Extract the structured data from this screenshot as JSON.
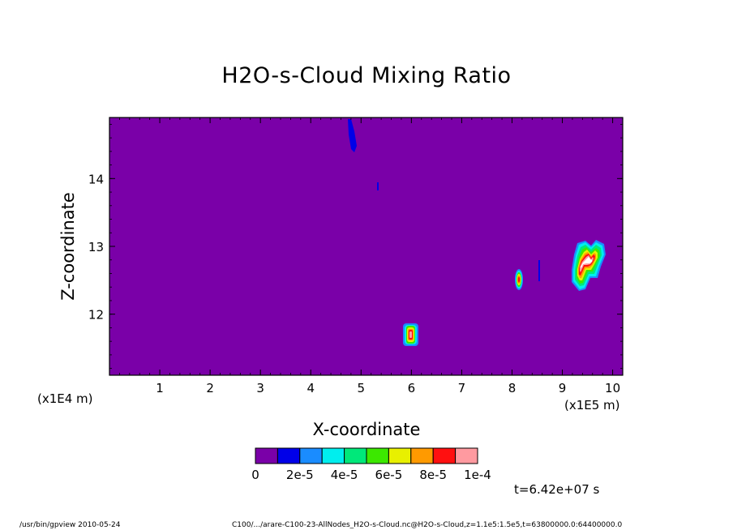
{
  "chart_data": {
    "type": "heatmap",
    "title": "H2O-s-Cloud Mixing Ratio",
    "xlabel": "X-coordinate",
    "ylabel": "Z-coordinate",
    "x_scale_label": "(x1E5 m)",
    "y_scale_label": "(x1E4 m)",
    "xlim": [
      0,
      10.2
    ],
    "ylim": [
      11.1,
      14.9
    ],
    "x_ticks": [
      "1",
      "2",
      "3",
      "4",
      "5",
      "6",
      "7",
      "8",
      "9",
      "10"
    ],
    "y_ticks": [
      "12",
      "13",
      "14"
    ],
    "background_value": 0,
    "colorbar": {
      "colors": [
        "#7a00a8",
        "#0000e8",
        "#1a8cff",
        "#00eeee",
        "#00e87a",
        "#3ce800",
        "#e8f000",
        "#ff9a00",
        "#ff1010",
        "#ff9aa0"
      ],
      "tick_labels": [
        "0",
        "2e-5",
        "4e-5",
        "6e-5",
        "8e-5",
        "1e-4"
      ],
      "over_color": "#ffffff"
    },
    "features": [
      {
        "name": "blue streak near top",
        "x": 4.78,
        "z": 14.65,
        "level": 1
      },
      {
        "name": "small blue mark",
        "x": 5.36,
        "z": 13.87,
        "level": 1
      },
      {
        "name": "cloud near x=6",
        "x": 6.0,
        "z": 11.7,
        "level": 9
      },
      {
        "name": "cloud near x=8.2",
        "x": 8.17,
        "z": 12.5,
        "level": 8
      },
      {
        "name": "blue line near x=8.55",
        "x": 8.55,
        "z": 12.7,
        "level": 1
      },
      {
        "name": "large cloud near x=9.5",
        "x": 9.55,
        "z": 12.75,
        "level": 10
      }
    ]
  },
  "time_label": "t=6.42e+07 s",
  "footer": {
    "program": "/usr/bin/gpview   2010-05-24",
    "source": "C100/.../arare-C100-23-AllNodes_H2O-s-Cloud.nc@H2O-s-Cloud,z=1.1e5:1.5e5,t=63800000.0:64400000.0"
  }
}
